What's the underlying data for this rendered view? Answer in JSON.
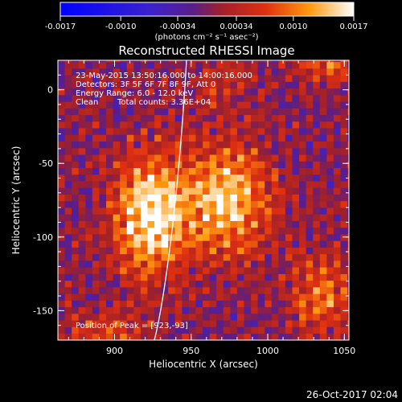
{
  "chart_data": {
    "type": "heatmap",
    "title": "Reconstructed RHESSI Image",
    "xlabel": "Heliocentric X (arcsec)",
    "ylabel": "Heliocentric Y (arcsec)",
    "xlim": [
      863,
      1053
    ],
    "ylim": [
      -170,
      20
    ],
    "xticks": [
      {
        "value": 900,
        "label": "900"
      },
      {
        "value": 950,
        "label": "950"
      },
      {
        "value": 1000,
        "label": "1000"
      },
      {
        "value": 1050,
        "label": "1050"
      }
    ],
    "yticks": [
      {
        "value": 0,
        "label": "0"
      },
      {
        "value": -50,
        "label": "-50"
      },
      {
        "value": -100,
        "label": "-100"
      },
      {
        "value": -150,
        "label": "-150"
      }
    ],
    "colorbar": {
      "min": -0.0017,
      "max": 0.0017,
      "ticks": [
        {
          "value": -0.0017,
          "label": "-0.0017"
        },
        {
          "value": -0.001,
          "label": "-0.0010"
        },
        {
          "value": -0.00034,
          "label": "-0.00034"
        },
        {
          "value": 0.00034,
          "label": "0.00034"
        },
        {
          "value": 0.001,
          "label": "0.0010"
        },
        {
          "value": 0.0017,
          "label": "0.0017"
        }
      ],
      "unit_label": "(photons cm⁻² s⁻¹ asec⁻²)"
    },
    "annotations": [
      "23-May-2015 13:50:16.000 to 14:00:16.000",
      "Detectors: 3F 5F 6F 7F 8F 9F, Att 0",
      "Energy Range: 6.0 - 12.0 keV",
      "Clean",
      "Total counts: 3.36E+04"
    ],
    "peak_label": "Position of Peak = [923,-93]",
    "peak": [
      923,
      -93
    ],
    "sources": [
      {
        "x": 923,
        "y": -85,
        "amplitude": 0.0017,
        "sx": 16,
        "sy": 28
      },
      {
        "x": 973,
        "y": -75,
        "amplitude": 0.00145,
        "sx": 20,
        "sy": 26
      },
      {
        "x": 1035,
        "y": -140,
        "amplitude": 0.0009,
        "sx": 14,
        "sy": 18
      },
      {
        "x": 1040,
        "y": 15,
        "amplitude": 0.0008,
        "sx": 13,
        "sy": 8
      },
      {
        "x": 970,
        "y": 5,
        "amplitude": 0.0004,
        "sx": 16,
        "sy": 12
      },
      {
        "x": 895,
        "y": -165,
        "amplitude": 0.0006,
        "sx": 18,
        "sy": 10
      }
    ],
    "limb_curve_x": [
      {
        "y": 20,
        "x": 947
      },
      {
        "y": -50,
        "x": 943
      },
      {
        "y": -100,
        "x": 937
      },
      {
        "y": -170,
        "x": 926
      }
    ]
  },
  "footer": {
    "timestamp": "26-Oct-2017 02:04"
  },
  "colors": {
    "background": "#000000",
    "foreground": "#ffffff"
  }
}
